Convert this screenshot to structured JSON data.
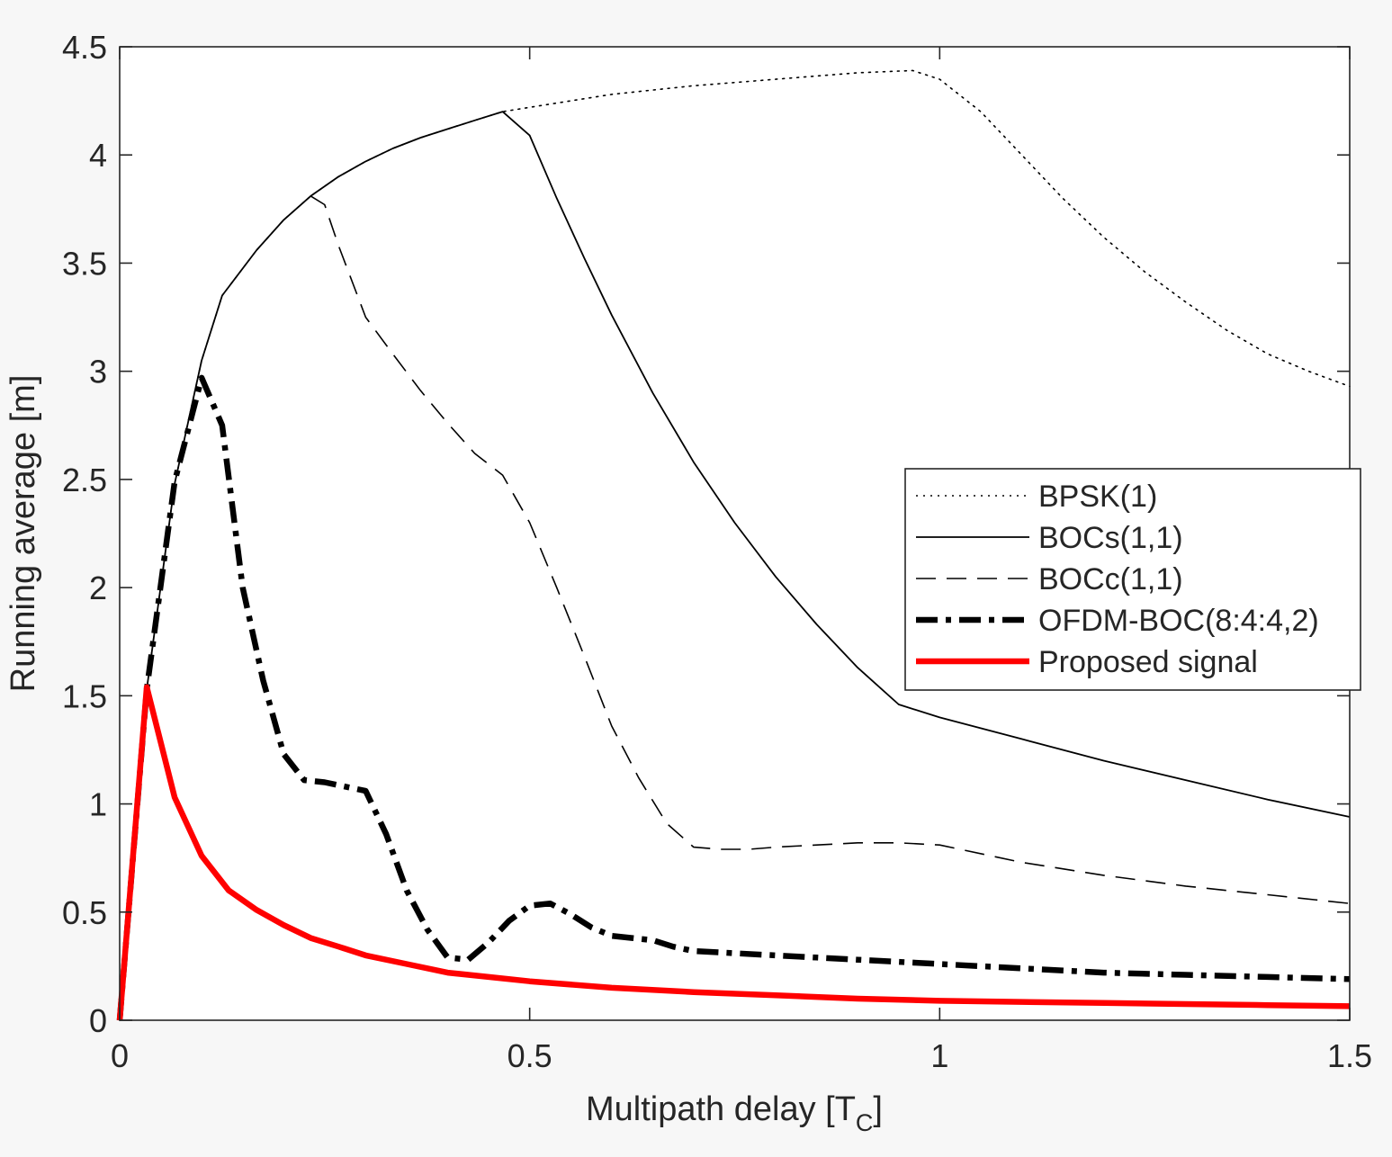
{
  "chart_data": {
    "type": "line",
    "xlabel_main": "Multipath delay [T",
    "xlabel_sub": "C",
    "xlabel_end": "]",
    "ylabel": "Running average [m]",
    "xlim": [
      0,
      1.5
    ],
    "ylim": [
      0,
      4.5
    ],
    "x_ticks": [
      0,
      0.5,
      1,
      1.5
    ],
    "x_tick_labels": [
      "0",
      "0.5",
      "1",
      "1.5"
    ],
    "y_ticks": [
      0,
      0.5,
      1,
      1.5,
      2,
      2.5,
      3,
      3.5,
      4,
      4.5
    ],
    "y_tick_labels": [
      "0",
      "0.5",
      "1",
      "1.5",
      "2",
      "2.5",
      "3",
      "3.5",
      "4",
      "4.5"
    ],
    "grid": false,
    "legend_position": "right",
    "series": [
      {
        "name": "BPSK(1)",
        "color": "#000000",
        "style": "dotted",
        "x": [
          0,
          0.033,
          0.067,
          0.1,
          0.125,
          0.167,
          0.2,
          0.233,
          0.267,
          0.3,
          0.333,
          0.367,
          0.4,
          0.433,
          0.467,
          0.5,
          0.6,
          0.7,
          0.8,
          0.9,
          0.967,
          1.0,
          1.05,
          1.1,
          1.15,
          1.2,
          1.25,
          1.3,
          1.35,
          1.4,
          1.45,
          1.5
        ],
        "y": [
          0,
          1.53,
          2.48,
          3.05,
          3.35,
          3.56,
          3.7,
          3.81,
          3.9,
          3.97,
          4.03,
          4.08,
          4.12,
          4.16,
          4.2,
          4.22,
          4.28,
          4.32,
          4.35,
          4.38,
          4.39,
          4.35,
          4.2,
          4.0,
          3.8,
          3.62,
          3.46,
          3.32,
          3.19,
          3.08,
          3.0,
          2.93
        ]
      },
      {
        "name": "BOCs(1,1)",
        "color": "#000000",
        "style": "solid",
        "x": [
          0,
          0.033,
          0.067,
          0.1,
          0.125,
          0.167,
          0.2,
          0.233,
          0.267,
          0.3,
          0.333,
          0.367,
          0.4,
          0.433,
          0.467,
          0.5,
          0.533,
          0.567,
          0.6,
          0.65,
          0.7,
          0.75,
          0.8,
          0.85,
          0.9,
          0.95,
          1.0,
          1.1,
          1.2,
          1.3,
          1.4,
          1.5
        ],
        "y": [
          0,
          1.53,
          2.48,
          3.05,
          3.35,
          3.56,
          3.7,
          3.81,
          3.9,
          3.97,
          4.03,
          4.08,
          4.12,
          4.16,
          4.2,
          4.09,
          3.8,
          3.52,
          3.26,
          2.9,
          2.58,
          2.3,
          2.05,
          1.83,
          1.63,
          1.46,
          1.4,
          1.3,
          1.2,
          1.11,
          1.02,
          0.94
        ]
      },
      {
        "name": "BOCc(1,1)",
        "color": "#000000",
        "style": "dashed",
        "x": [
          0.233,
          0.25,
          0.267,
          0.3,
          0.333,
          0.367,
          0.4,
          0.433,
          0.467,
          0.5,
          0.533,
          0.567,
          0.6,
          0.633,
          0.667,
          0.7,
          0.733,
          0.767,
          0.8,
          0.85,
          0.9,
          0.95,
          1.0,
          1.1,
          1.2,
          1.3,
          1.4,
          1.5
        ],
        "y": [
          3.81,
          3.77,
          3.58,
          3.25,
          3.08,
          2.91,
          2.76,
          2.62,
          2.52,
          2.3,
          2.0,
          1.68,
          1.36,
          1.12,
          0.91,
          0.8,
          0.79,
          0.79,
          0.8,
          0.81,
          0.82,
          0.82,
          0.81,
          0.73,
          0.67,
          0.62,
          0.58,
          0.54
        ]
      },
      {
        "name": "OFDM-BOC(8:4:4,2)",
        "color": "#000000",
        "style": "dashdot",
        "x": [
          0,
          0.033,
          0.067,
          0.1,
          0.125,
          0.15,
          0.175,
          0.2,
          0.225,
          0.25,
          0.275,
          0.3,
          0.325,
          0.35,
          0.375,
          0.4,
          0.425,
          0.45,
          0.475,
          0.5,
          0.525,
          0.55,
          0.575,
          0.6,
          0.625,
          0.65,
          0.675,
          0.7,
          0.75,
          0.8,
          0.85,
          0.9,
          0.95,
          1.0,
          1.05,
          1.1,
          1.2,
          1.3,
          1.4,
          1.5
        ],
        "y": [
          0,
          1.53,
          2.49,
          2.97,
          2.75,
          2.0,
          1.57,
          1.23,
          1.11,
          1.1,
          1.08,
          1.06,
          0.86,
          0.6,
          0.42,
          0.29,
          0.28,
          0.36,
          0.46,
          0.53,
          0.54,
          0.49,
          0.43,
          0.39,
          0.38,
          0.37,
          0.34,
          0.32,
          0.31,
          0.3,
          0.29,
          0.28,
          0.27,
          0.26,
          0.25,
          0.24,
          0.22,
          0.21,
          0.2,
          0.19
        ]
      },
      {
        "name": "Proposed signal",
        "color": "#ff0000",
        "style": "solid-thick",
        "x": [
          0,
          0.033,
          0.067,
          0.1,
          0.133,
          0.167,
          0.2,
          0.233,
          0.267,
          0.3,
          0.35,
          0.4,
          0.45,
          0.5,
          0.6,
          0.7,
          0.8,
          0.9,
          1.0,
          1.1,
          1.2,
          1.3,
          1.4,
          1.5
        ],
        "y": [
          0,
          1.54,
          1.03,
          0.76,
          0.6,
          0.51,
          0.44,
          0.38,
          0.34,
          0.3,
          0.26,
          0.22,
          0.2,
          0.18,
          0.15,
          0.13,
          0.115,
          0.1,
          0.09,
          0.085,
          0.08,
          0.075,
          0.07,
          0.065
        ]
      }
    ]
  }
}
